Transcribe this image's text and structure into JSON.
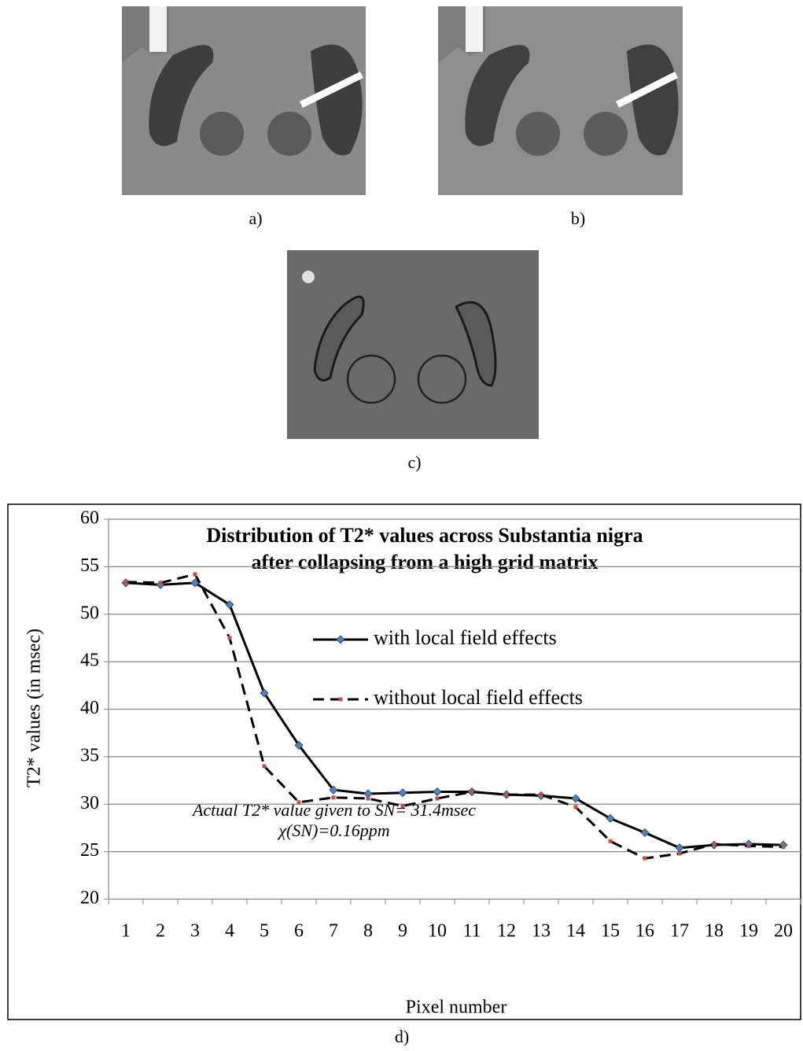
{
  "panels": [
    "a)",
    "b)",
    "c)",
    "d)"
  ],
  "chart_data": {
    "type": "line",
    "title": [
      "Distribution of T2* values across Substantia nigra",
      "after collapsing from a high grid matrix"
    ],
    "x_label": "Pixel number",
    "y_label": "T2* values (in msec)",
    "annotations": [
      "Actual T2* value given to SN= 31.4msec",
      "χ(SN)=0.16ppm"
    ],
    "categories": [
      "1",
      "2",
      "3",
      "4",
      "5",
      "6",
      "7",
      "8",
      "9",
      "10",
      "11",
      "12",
      "13",
      "14",
      "15",
      "16",
      "17",
      "18",
      "19",
      "20"
    ],
    "series": [
      {
        "name": "with local field effects",
        "color": "#000000",
        "marker_color": "#4f81bd",
        "marker": "diamond",
        "linestyle": "solid",
        "values": [
          53.3,
          53.1,
          53.3,
          51.0,
          41.7,
          36.2,
          31.5,
          31.1,
          31.2,
          31.3,
          31.3,
          31.0,
          30.9,
          30.6,
          28.5,
          27.0,
          25.4,
          25.7,
          25.8,
          25.7
        ]
      },
      {
        "name": "without  local field effects",
        "color": "#000000",
        "marker_color": "#c0504d",
        "marker": "square",
        "linestyle": "dashed",
        "values": [
          53.4,
          53.3,
          54.2,
          47.5,
          34.0,
          30.2,
          30.7,
          30.6,
          29.8,
          30.6,
          31.3,
          31.0,
          31.0,
          29.7,
          26.1,
          24.3,
          24.8,
          25.8,
          25.6,
          25.5
        ]
      }
    ],
    "ylim": [
      20,
      60
    ],
    "yticks": [
      20,
      25,
      30,
      35,
      40,
      45,
      50,
      55,
      60
    ],
    "grid": true
  }
}
